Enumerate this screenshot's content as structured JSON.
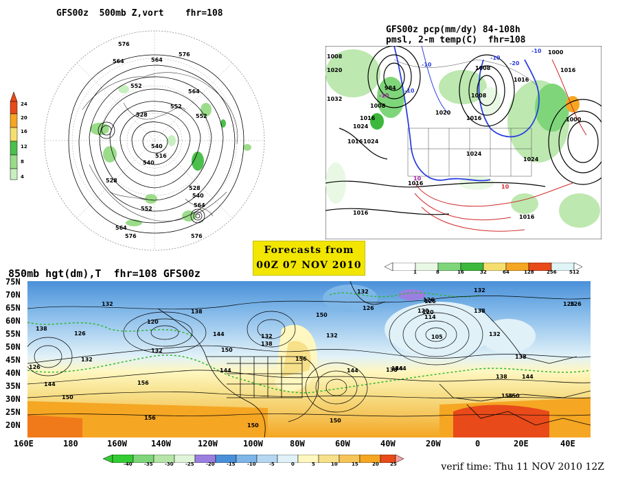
{
  "panel_500mb": {
    "title": "GFS00z  500mb Z,vort    fhr=108",
    "colorbar_ticks": [
      "24",
      "20",
      "16",
      "12",
      "8",
      "4"
    ],
    "colorbar_colors": [
      "#e84a1a",
      "#f5a623",
      "#f5de6e",
      "#9bdc8a",
      "#4cbf4c",
      "#c8efc0"
    ],
    "contour_labels": [
      "576",
      "576",
      "564",
      "564",
      "564",
      "552",
      "552",
      "540",
      "516",
      "528",
      "528",
      "540",
      "552",
      "564",
      "564",
      "576",
      "576",
      "528",
      "540",
      "552"
    ]
  },
  "panel_pcp": {
    "title_line1": "GFS00z pcp(mm/dy) 84-108h",
    "title_line2": "pmsl, 2-m temp(C)  fhr=108",
    "pressure_labels": [
      "1008",
      "1020",
      "1032",
      "1024",
      "1016",
      "1008",
      "984",
      "1016",
      "1024",
      "1020",
      "1024",
      "1016",
      "1008",
      "1016",
      "1000",
      "1008",
      "1016",
      "1024",
      "1016",
      "1016",
      "1000",
      "1016"
    ],
    "temp_labels": [
      "-10",
      "-10",
      "-10",
      "-10",
      "-10",
      "10",
      "10",
      "-20"
    ],
    "colorbar_ticks": [
      "1",
      "8",
      "16",
      "32",
      "64",
      "128",
      "256",
      "512"
    ],
    "colorbar_colors": [
      "#e9f8e4",
      "#bde8b0",
      "#7fd67a",
      "#3cb83c",
      "#f5de6e",
      "#f5a623",
      "#e84a1a",
      "#dff4f4"
    ]
  },
  "forecast_box": {
    "line1": "Forecasts from",
    "line2": "00Z 07 NOV 2010"
  },
  "panel_850mb": {
    "title": "850mb hgt(dm),T  fhr=108 GFS00z",
    "lat_ticks": [
      "75N",
      "70N",
      "65N",
      "60N",
      "55N",
      "50N",
      "45N",
      "40N",
      "35N",
      "30N",
      "25N",
      "20N"
    ],
    "lon_ticks": [
      "160E",
      "180",
      "160W",
      "140W",
      "120W",
      "100W",
      "80W",
      "60W",
      "40W",
      "20W",
      "0",
      "20E",
      "40E"
    ],
    "height_labels": [
      "138",
      "132",
      "126",
      "120",
      "132",
      "138",
      "144",
      "132",
      "126",
      "132",
      "138",
      "144",
      "150",
      "156",
      "150",
      "144",
      "138",
      "132",
      "126",
      "114",
      "105",
      "120",
      "126",
      "132",
      "138",
      "144",
      "150",
      "156",
      "150",
      "144",
      "138",
      "132",
      "126",
      "150",
      "156",
      "150",
      "144",
      "138",
      "132",
      "126",
      "120",
      "144",
      "150",
      "126"
    ],
    "colorbar_ticks": [
      "-40",
      "-35",
      "-30",
      "-25",
      "-20",
      "-15",
      "-10",
      "-5",
      "0",
      "5",
      "10",
      "15",
      "20",
      "25"
    ],
    "colorbar_colors": [
      "#33cc33",
      "#7fd67a",
      "#b5e6a8",
      "#dff4d8",
      "#9b7fe0",
      "#4a90d9",
      "#7eb6e8",
      "#b5d7f2",
      "#e0f1f8",
      "#fff7c0",
      "#f7e08a",
      "#f5c55a",
      "#f5a623",
      "#e84a1a"
    ]
  },
  "verif_time": "verif time: Thu 11 NOV 2010 12Z"
}
